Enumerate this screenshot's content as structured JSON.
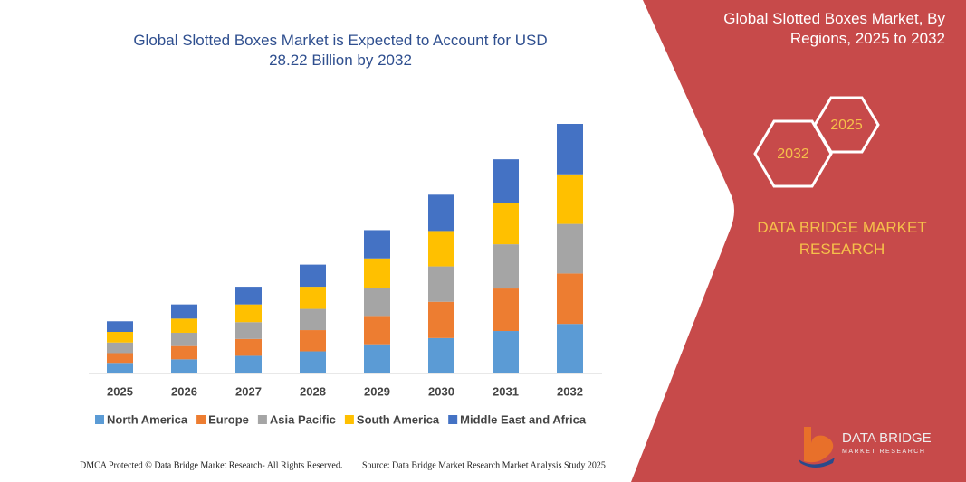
{
  "chart_data": {
    "type": "stacked-bar",
    "title": "Global Slotted Boxes Market is Expected to Account for USD 28.22 Billion by 2032",
    "categories": [
      "2025",
      "2026",
      "2027",
      "2028",
      "2029",
      "2030",
      "2031",
      "2032"
    ],
    "series": [
      {
        "name": "North America",
        "color": "#5b9bd5",
        "values": [
          1.2,
          1.6,
          2.0,
          2.5,
          3.3,
          4.0,
          4.8,
          5.6
        ]
      },
      {
        "name": "Europe",
        "color": "#ed7d31",
        "values": [
          1.1,
          1.5,
          1.9,
          2.4,
          3.2,
          4.1,
          4.8,
          5.7
        ]
      },
      {
        "name": "Asia Pacific",
        "color": "#a5a5a5",
        "values": [
          1.2,
          1.5,
          1.9,
          2.4,
          3.2,
          4.0,
          5.0,
          5.6
        ]
      },
      {
        "name": "South America",
        "color": "#ffc000",
        "values": [
          1.2,
          1.6,
          2.0,
          2.5,
          3.3,
          4.0,
          4.7,
          5.6
        ]
      },
      {
        "name": "Middle East and Africa",
        "color": "#4472c4",
        "values": [
          1.2,
          1.6,
          2.0,
          2.5,
          3.2,
          4.1,
          4.9,
          5.7
        ]
      }
    ]
  },
  "panel": {
    "title": "Global Slotted Boxes Market, By Regions, 2025 to 2032",
    "hex_start": "2025",
    "hex_end": "2032",
    "brand": "DATA BRIDGE MARKET RESEARCH"
  },
  "logo": {
    "name": "DATA BRIDGE",
    "tagline": "MARKET RESEARCH"
  },
  "footer": {
    "left": "DMCA Protected © Data Bridge Market Research-  All Rights Reserved.",
    "right": "Source: Data Bridge Market Research  Market Analysis Study 2025"
  }
}
